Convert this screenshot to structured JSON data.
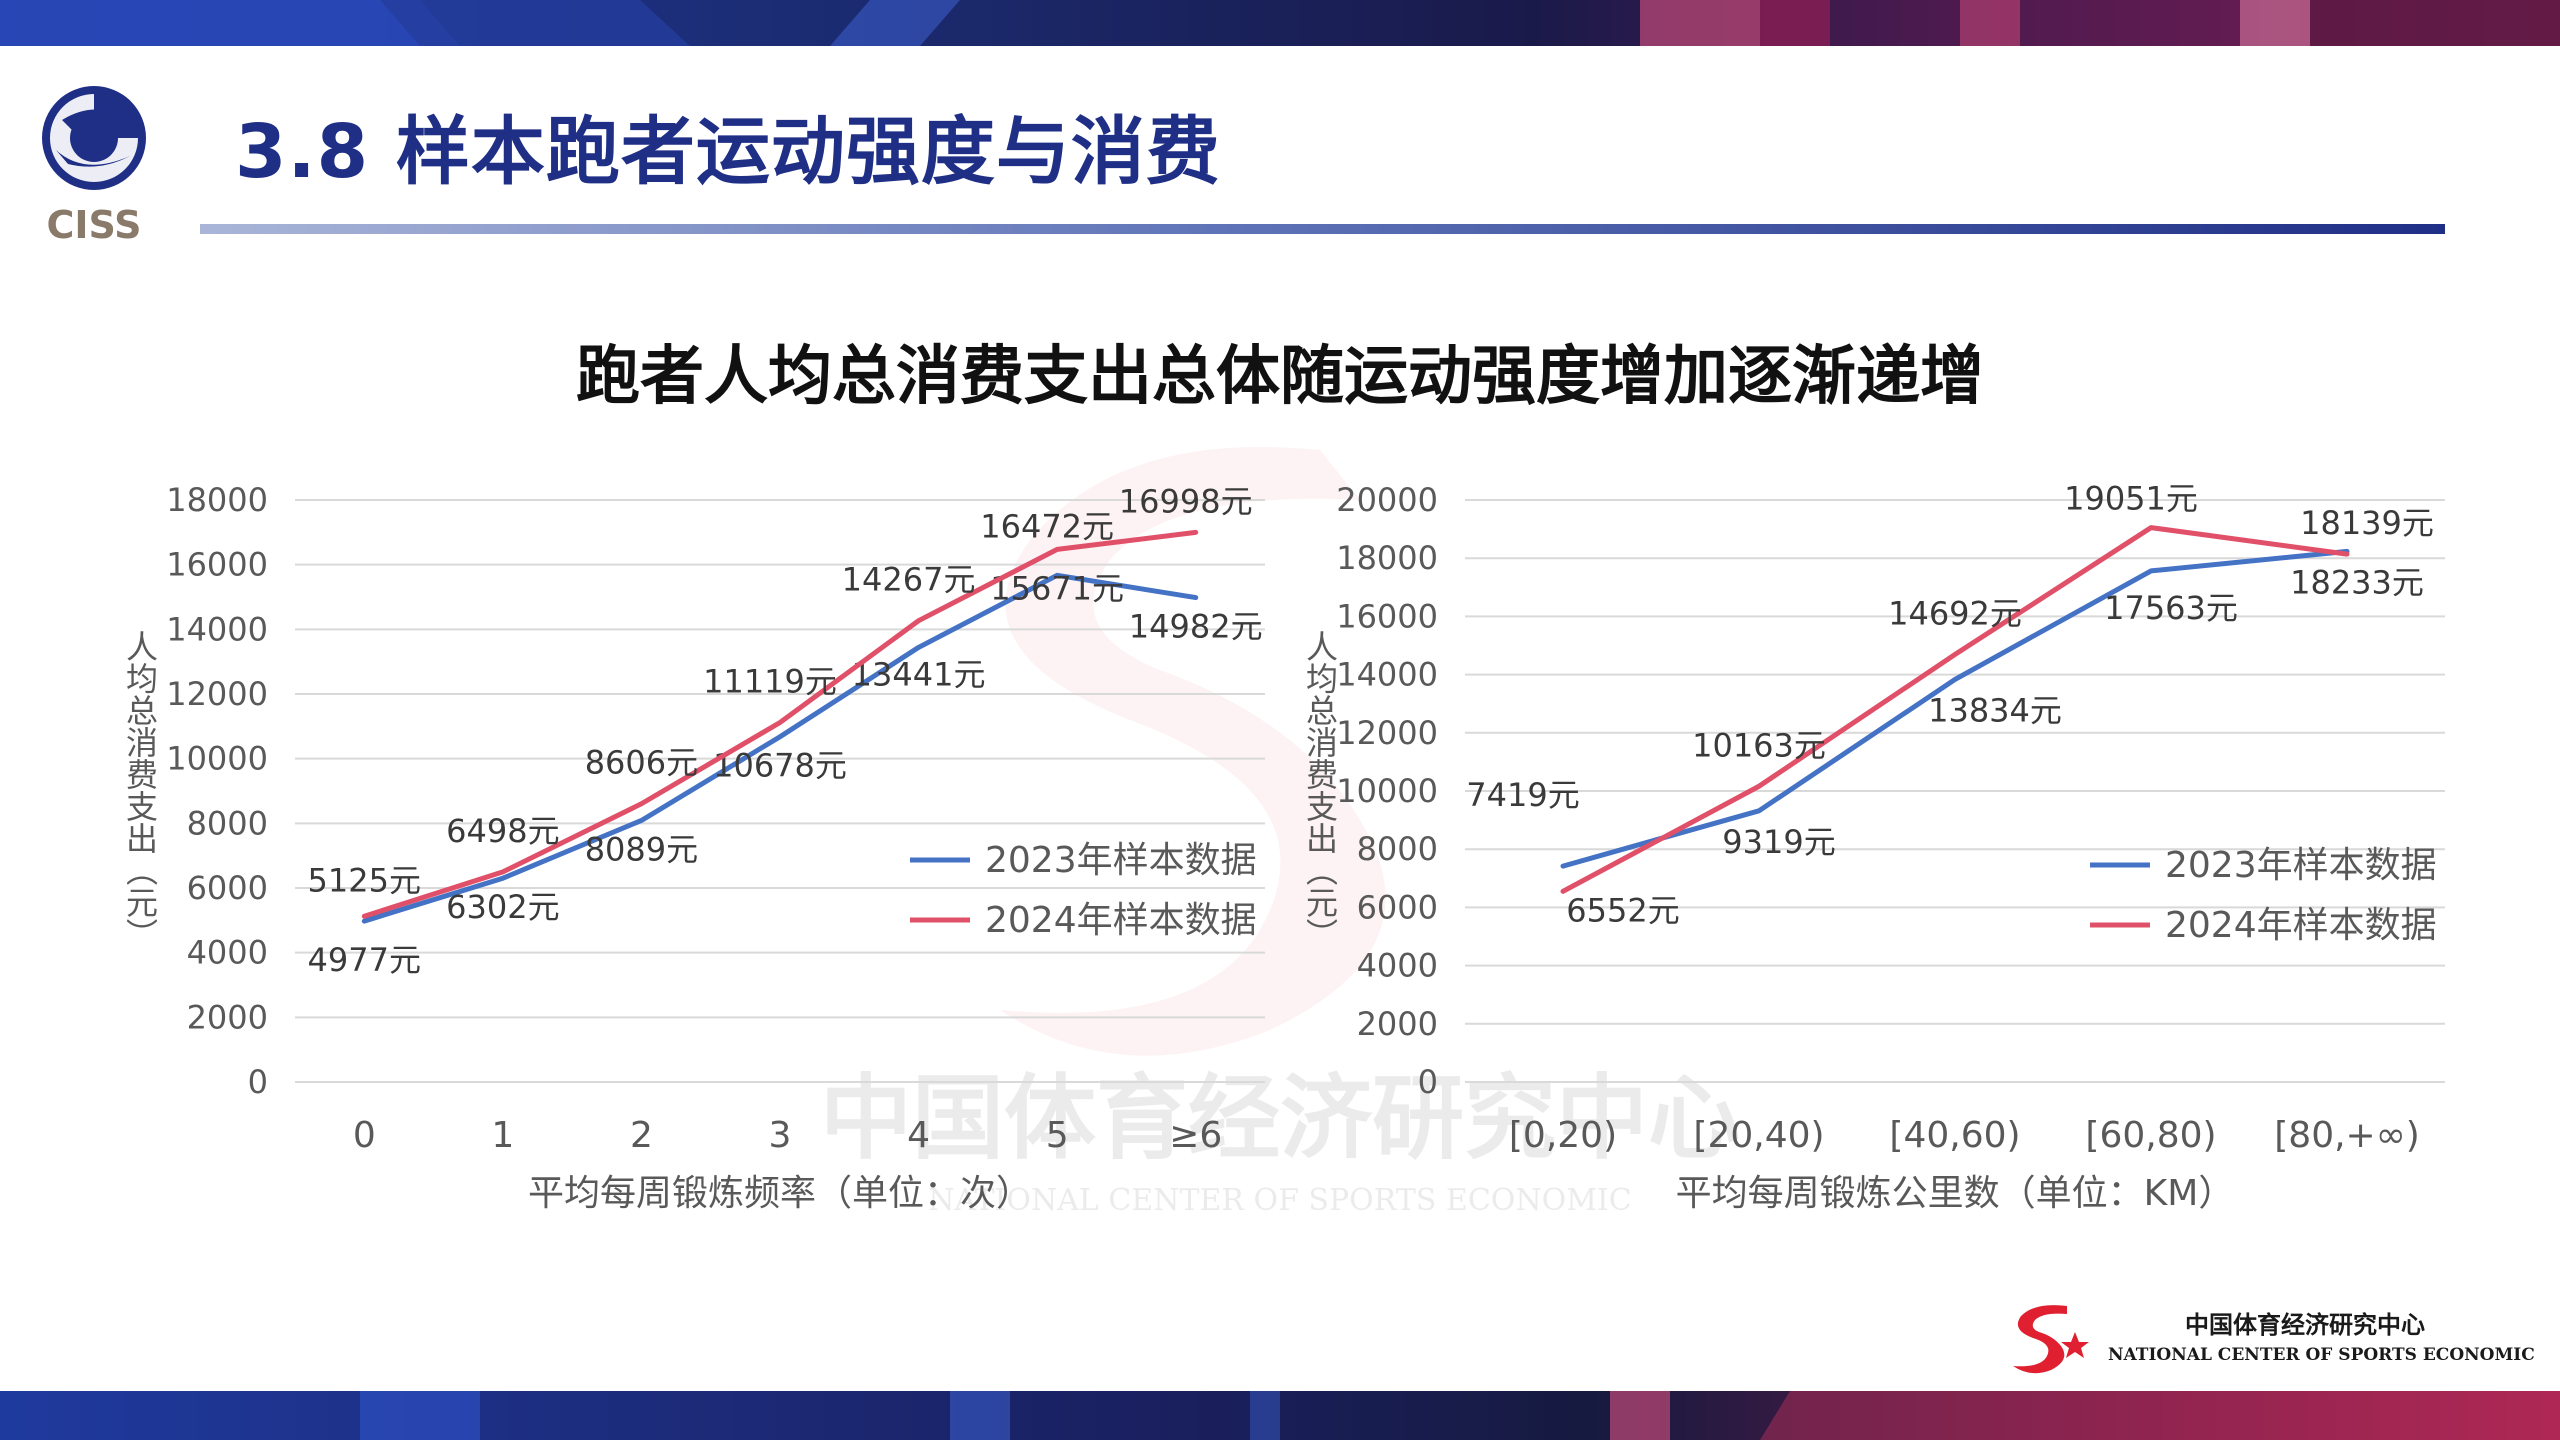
{
  "header": {
    "logo_text": "CISS",
    "title": "3.8 样本跑者运动强度与消费"
  },
  "headline": "跑者人均总消费支出总体随运动强度增加逐渐递增",
  "watermark": {
    "cn": "中国体育经济研究中心",
    "en": "NATIONAL CENTER OF SPORTS ECONOMIC"
  },
  "footer": {
    "cn": "中国体育经济研究中心",
    "en": "NATIONAL CENTER OF SPORTS ECONOMIC"
  },
  "colors": {
    "series_2023": "#4472c4",
    "series_2024": "#e15069",
    "title": "#1f2f86",
    "axis_text": "#595959",
    "grid": "#d9d9d9"
  },
  "chart_data": [
    {
      "type": "line",
      "xlabel": "平均每周锻炼频率（单位：次）",
      "ylabel": "人均总消费支出（元）",
      "categories": [
        "0",
        "1",
        "2",
        "3",
        "4",
        "5",
        "≥6"
      ],
      "ylim": [
        0,
        18000
      ],
      "yticks": [
        "0",
        "2000",
        "4000",
        "6000",
        "8000",
        "10000",
        "12000",
        "14000",
        "16000",
        "18000"
      ],
      "grid": true,
      "legend_position": "right",
      "series": [
        {
          "name": "2023年样本数据",
          "values": [
            4977,
            6302,
            8089,
            10678,
            13441,
            15671,
            14982
          ],
          "labels": [
            "4977元",
            "6302元",
            "8089元",
            "10678元",
            "13441元",
            "15671元",
            "14982元"
          ]
        },
        {
          "name": "2024年样本数据",
          "values": [
            5125,
            6498,
            8606,
            11119,
            14267,
            16472,
            16998
          ],
          "labels": [
            "5125元",
            "6498元",
            "8606元",
            "11119元",
            "14267元",
            "16472元",
            "16998元"
          ]
        }
      ]
    },
    {
      "type": "line",
      "xlabel": "平均每周锻炼公里数（单位：KM）",
      "ylabel": "人均总消费支出（元）",
      "categories": [
        "[0,20)",
        "[20,40)",
        "[40,60)",
        "[60,80)",
        "[80,+∞)"
      ],
      "ylim": [
        0,
        20000
      ],
      "yticks": [
        "0",
        "2000",
        "4000",
        "6000",
        "8000",
        "10000",
        "12000",
        "14000",
        "16000",
        "18000",
        "20000"
      ],
      "grid": true,
      "legend_position": "right",
      "series": [
        {
          "name": "2023年样本数据",
          "values": [
            7419,
            9319,
            13834,
            17563,
            18233
          ],
          "labels": [
            "7419元",
            "9319元",
            "13834元",
            "17563元",
            "18233元"
          ]
        },
        {
          "name": "2024年样本数据",
          "values": [
            6552,
            10163,
            14692,
            19051,
            18139
          ],
          "labels": [
            "6552元",
            "10163元",
            "14692元",
            "19051元",
            "18139元"
          ]
        }
      ]
    }
  ]
}
